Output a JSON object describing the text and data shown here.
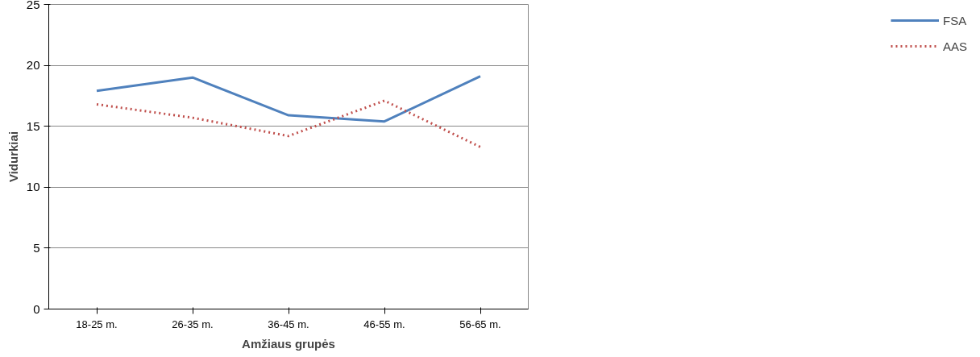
{
  "chart_data": {
    "type": "line",
    "xlabel": "Amžiaus grupės",
    "ylabel": "Vidurkiai",
    "categories": [
      "18-25 m.",
      "26-35 m.",
      "36-45 m.",
      "46-55 m.",
      "56-65 m."
    ],
    "series": [
      {
        "name": "FSA",
        "color": "#4f81bd",
        "line_style": "solid",
        "values": [
          17.9,
          19.0,
          15.9,
          15.4,
          19.1
        ]
      },
      {
        "name": "AAS",
        "color": "#c0504d",
        "line_style": "dotted",
        "values": [
          16.8,
          15.7,
          14.2,
          17.1,
          13.3
        ]
      }
    ],
    "ylim": [
      0,
      25
    ],
    "yticks": [
      0,
      5,
      10,
      15,
      20,
      25
    ],
    "grid": "y",
    "legend": "right",
    "marker": "none"
  }
}
